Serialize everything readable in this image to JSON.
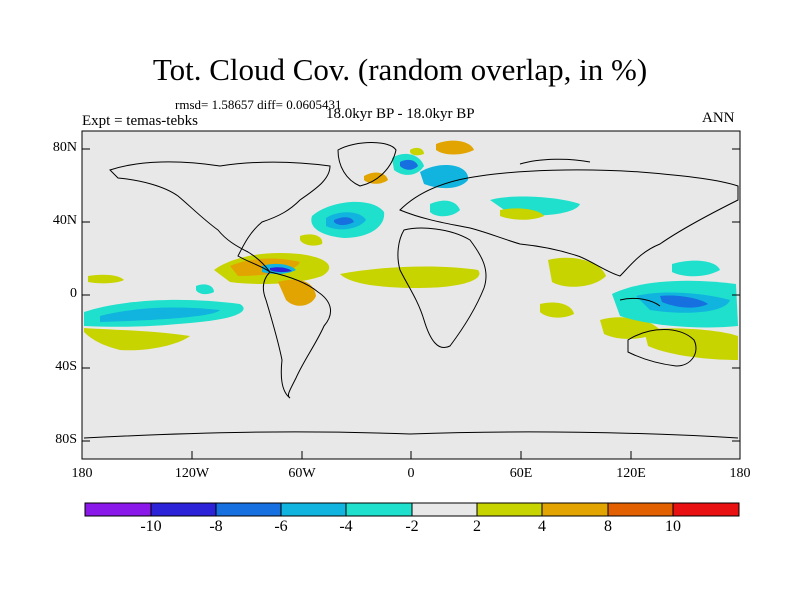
{
  "title": "Tot. Cloud Cov. (random overlap, in %)",
  "stats": "rmsd= 1.58657 diff= 0.0605431",
  "period": "18.0kyr BP - 18.0kyr BP",
  "experiment": "Expt = temas-tebks",
  "season": "ANN",
  "lat_labels": [
    "80N",
    "40N",
    "0",
    "40S",
    "80S"
  ],
  "lon_labels": [
    "180",
    "120W",
    "60W",
    "0",
    "60E",
    "120E",
    "180"
  ],
  "colorbar": {
    "labels": [
      "-10",
      "-8",
      "-6",
      "-4",
      "-2",
      "2",
      "4",
      "8",
      "10"
    ],
    "colors": [
      "#8a18e8",
      "#2c22d8",
      "#1670e0",
      "#10b4de",
      "#1ee0cc",
      "#e8e8e8",
      "#c8d400",
      "#e2a400",
      "#e26000",
      "#e81010"
    ]
  },
  "colors": {
    "background_field": "#e8e8e8",
    "coastline": "#000000"
  }
}
